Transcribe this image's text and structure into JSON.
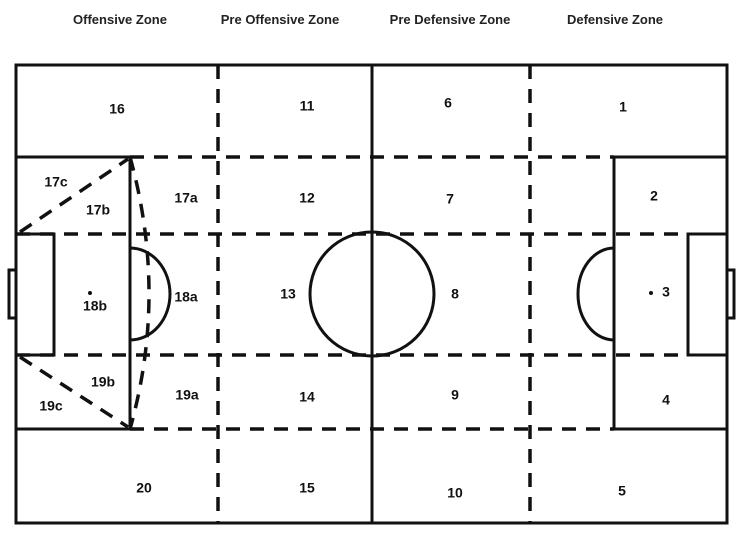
{
  "headers": {
    "offensive": "Offensive Zone",
    "pre_offensive": "Pre Offensive Zone",
    "pre_defensive": "Pre Defensive Zone",
    "defensive": "Defensive Zone"
  },
  "zones": {
    "z1": "1",
    "z2": "2",
    "z3": "3",
    "z4": "4",
    "z5": "5",
    "z6": "6",
    "z7": "7",
    "z8": "8",
    "z9": "9",
    "z10": "10",
    "z11": "11",
    "z12": "12",
    "z13": "13",
    "z14": "14",
    "z15": "15",
    "z16": "16",
    "z17a": "17a",
    "z17b": "17b",
    "z17c": "17c",
    "z18a": "18a",
    "z18b": "18b",
    "z19a": "19a",
    "z19b": "19b",
    "z19c": "19c",
    "z20": "20"
  },
  "colors": {
    "line": "#111111",
    "background": "#ffffff"
  }
}
